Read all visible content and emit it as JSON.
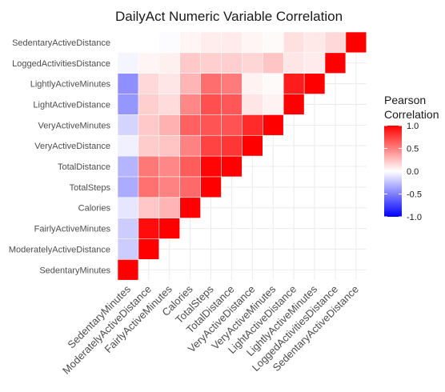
{
  "chart_data": {
    "type": "heatmap",
    "title": "DailyAct Numeric Variable Correlation",
    "variables": [
      "SedentaryMinutes",
      "ModeratelyActiveDistance",
      "FairlyActiveMinutes",
      "Calories",
      "TotalSteps",
      "TotalDistance",
      "VeryActiveDistance",
      "VeryActiveMinutes",
      "LightActiveDistance",
      "LightlyActiveMinutes",
      "LoggedActivitiesDistance",
      "SedentaryActiveDistance"
    ],
    "matrix": [
      [
        1.0,
        -0.2,
        -0.2,
        -0.1,
        -0.33,
        -0.29,
        -0.06,
        -0.17,
        -0.41,
        -0.44,
        -0.04,
        0.0
      ],
      [
        -0.2,
        1.0,
        0.95,
        0.22,
        0.56,
        0.53,
        0.2,
        0.21,
        0.19,
        0.15,
        0.04,
        0.0
      ],
      [
        -0.2,
        0.95,
        1.0,
        0.29,
        0.49,
        0.47,
        0.23,
        0.31,
        0.14,
        0.1,
        0.06,
        -0.01
      ],
      [
        -0.1,
        0.22,
        0.29,
        1.0,
        0.59,
        0.64,
        0.49,
        0.62,
        0.47,
        0.29,
        0.21,
        0.04
      ],
      [
        -0.33,
        0.56,
        0.49,
        0.59,
        1.0,
        0.98,
        0.74,
        0.67,
        0.69,
        0.57,
        0.19,
        0.07
      ],
      [
        -0.29,
        0.53,
        0.47,
        0.64,
        0.98,
        1.0,
        0.79,
        0.68,
        0.66,
        0.52,
        0.19,
        0.08
      ],
      [
        -0.06,
        0.2,
        0.23,
        0.49,
        0.74,
        0.79,
        1.0,
        0.83,
        0.1,
        0.05,
        0.16,
        0.04
      ],
      [
        -0.17,
        0.21,
        0.31,
        0.62,
        0.67,
        0.68,
        0.83,
        1.0,
        0.05,
        0.02,
        0.23,
        0.02
      ],
      [
        -0.41,
        0.19,
        0.14,
        0.47,
        0.69,
        0.66,
        0.1,
        0.05,
        1.0,
        0.89,
        0.1,
        0.12
      ],
      [
        -0.44,
        0.15,
        0.1,
        0.29,
        0.57,
        0.52,
        0.05,
        0.02,
        0.89,
        1.0,
        0.08,
        0.09
      ],
      [
        -0.04,
        0.04,
        0.06,
        0.21,
        0.19,
        0.19,
        0.16,
        0.23,
        0.1,
        0.08,
        1.0,
        0.15
      ],
      [
        0.0,
        0.0,
        -0.01,
        0.04,
        0.07,
        0.08,
        0.04,
        0.02,
        0.12,
        0.09,
        0.15,
        1.0
      ]
    ],
    "display": "lower-triangle",
    "legend": {
      "title_lines": [
        "Pearson",
        "Correlation"
      ],
      "ticks": [
        1.0,
        0.5,
        0.0,
        -0.5,
        -1.0
      ],
      "tick_labels": [
        "1.0",
        "0.5",
        "0.0",
        "-0.5",
        "-1.0"
      ],
      "range": [
        -1,
        1
      ],
      "placement": "right"
    },
    "colors": {
      "low": "#0000ff",
      "mid": "#ffffff",
      "high": "#ff0000",
      "grid": "#ebebeb"
    },
    "grid": true,
    "x_labels_rotation": "45 degrees"
  }
}
